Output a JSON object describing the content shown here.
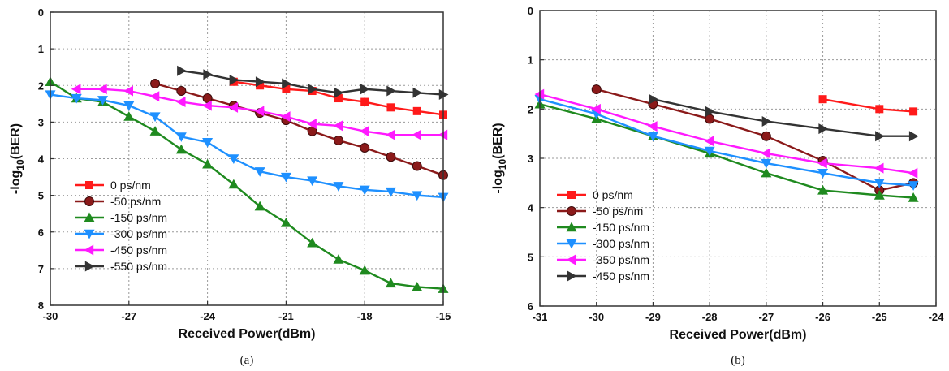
{
  "chart_data": [
    {
      "type": "line",
      "panel_label": "(a)",
      "xlabel": "Received Power(dBm)",
      "ylabel_base": "-log",
      "ylabel_sub": "10",
      "ylabel_tail": "(BER)",
      "xlim": [
        -30,
        -15
      ],
      "ylim": [
        0,
        8
      ],
      "y_inverted": true,
      "grid": true,
      "legend_position": "lower-left",
      "xticks": [
        -30,
        -27,
        -24,
        -21,
        -18,
        -15
      ],
      "yticks": [
        0,
        1,
        2,
        3,
        4,
        5,
        6,
        7,
        8
      ],
      "series": [
        {
          "name": "0 ps/nm",
          "color": "#ff1a1a",
          "marker": "square",
          "x": [
            -23,
            -22,
            -21,
            -20,
            -19,
            -18,
            -17,
            -16,
            -15
          ],
          "y": [
            1.9,
            2.0,
            2.1,
            2.15,
            2.35,
            2.45,
            2.6,
            2.7,
            2.8
          ]
        },
        {
          "name": "-50 ps/nm",
          "color": "#8b1a1a",
          "marker": "circle",
          "x": [
            -26,
            -25,
            -24,
            -23,
            -22,
            -21,
            -20,
            -19,
            -18,
            -17,
            -16,
            -15
          ],
          "y": [
            1.95,
            2.15,
            2.35,
            2.55,
            2.75,
            2.95,
            3.25,
            3.5,
            3.7,
            3.95,
            4.2,
            4.45
          ]
        },
        {
          "name": "-150 ps/nm",
          "color": "#1f8a1f",
          "marker": "triangle-up",
          "x": [
            -30,
            -29,
            -28,
            -27,
            -26,
            -25,
            -24,
            -23,
            -22,
            -21,
            -20,
            -19,
            -18,
            -17,
            -16,
            -15
          ],
          "y": [
            1.9,
            2.35,
            2.45,
            2.85,
            3.25,
            3.75,
            4.15,
            4.7,
            5.3,
            5.75,
            6.3,
            6.75,
            7.05,
            7.4,
            7.5,
            7.55
          ]
        },
        {
          "name": "-300 ps/nm",
          "color": "#1e90ff",
          "marker": "triangle-down",
          "x": [
            -30,
            -29,
            -28,
            -27,
            -26,
            -25,
            -24,
            -23,
            -22,
            -21,
            -20,
            -19,
            -18,
            -17,
            -16,
            -15
          ],
          "y": [
            2.25,
            2.35,
            2.4,
            2.55,
            2.85,
            3.4,
            3.55,
            4.0,
            4.35,
            4.5,
            4.6,
            4.75,
            4.85,
            4.9,
            5.0,
            5.05
          ]
        },
        {
          "name": "-450 ps/nm",
          "color": "#ff1aff",
          "marker": "triangle-left",
          "x": [
            -29,
            -28,
            -27,
            -26,
            -25,
            -24,
            -23,
            -22,
            -21,
            -20,
            -19,
            -18,
            -17,
            -16,
            -15
          ],
          "y": [
            2.1,
            2.1,
            2.15,
            2.3,
            2.45,
            2.55,
            2.6,
            2.7,
            2.85,
            3.05,
            3.1,
            3.25,
            3.35,
            3.35,
            3.35
          ]
        },
        {
          "name": "-550 ps/nm",
          "color": "#333333",
          "marker": "triangle-right",
          "x": [
            -25,
            -24,
            -23,
            -22,
            -21,
            -20,
            -19,
            -18,
            -17,
            -16,
            -15
          ],
          "y": [
            1.6,
            1.7,
            1.85,
            1.9,
            1.95,
            2.1,
            2.2,
            2.1,
            2.15,
            2.2,
            2.25
          ]
        }
      ]
    },
    {
      "type": "line",
      "panel_label": "(b)",
      "xlabel": "Received Power(dBm)",
      "ylabel_base": "-log",
      "ylabel_sub": "10",
      "ylabel_tail": "(BER)",
      "xlim": [
        -31,
        -24
      ],
      "ylim": [
        0,
        6
      ],
      "y_inverted": true,
      "grid": true,
      "legend_position": "lower-left",
      "xticks": [
        -31,
        -30,
        -29,
        -28,
        -27,
        -26,
        -25,
        -24
      ],
      "yticks": [
        0,
        1,
        2,
        3,
        4,
        5,
        6
      ],
      "series": [
        {
          "name": "0 ps/nm",
          "color": "#ff1a1a",
          "marker": "square",
          "x": [
            -26,
            -25,
            -24.4
          ],
          "y": [
            1.8,
            2.0,
            2.05
          ]
        },
        {
          "name": "-50 ps/nm",
          "color": "#8b1a1a",
          "marker": "circle",
          "x": [
            -30,
            -29,
            -28,
            -27,
            -26,
            -25,
            -24.4
          ],
          "y": [
            1.6,
            1.9,
            2.2,
            2.55,
            3.05,
            3.65,
            3.5
          ]
        },
        {
          "name": "-150 ps/nm",
          "color": "#1f8a1f",
          "marker": "triangle-up",
          "x": [
            -31,
            -30,
            -29,
            -28,
            -27,
            -26,
            -25,
            -24.4
          ],
          "y": [
            1.9,
            2.2,
            2.55,
            2.9,
            3.3,
            3.65,
            3.75,
            3.8
          ]
        },
        {
          "name": "-300 ps/nm",
          "color": "#1e90ff",
          "marker": "triangle-down",
          "x": [
            -31,
            -30,
            -29,
            -28,
            -27,
            -26,
            -25,
            -24.4
          ],
          "y": [
            1.8,
            2.1,
            2.55,
            2.85,
            3.1,
            3.3,
            3.5,
            3.55
          ]
        },
        {
          "name": "-350 ps/nm",
          "color": "#ff1aff",
          "marker": "triangle-left",
          "x": [
            -31,
            -30,
            -29,
            -28,
            -27,
            -26,
            -25,
            -24.4
          ],
          "y": [
            1.7,
            2.0,
            2.35,
            2.65,
            2.9,
            3.1,
            3.2,
            3.3
          ]
        },
        {
          "name": "-450 ps/nm",
          "color": "#333333",
          "marker": "triangle-right",
          "x": [
            -29,
            -28,
            -27,
            -26,
            -25,
            -24.4
          ],
          "y": [
            1.8,
            2.05,
            2.25,
            2.4,
            2.55,
            2.55
          ]
        }
      ]
    }
  ]
}
